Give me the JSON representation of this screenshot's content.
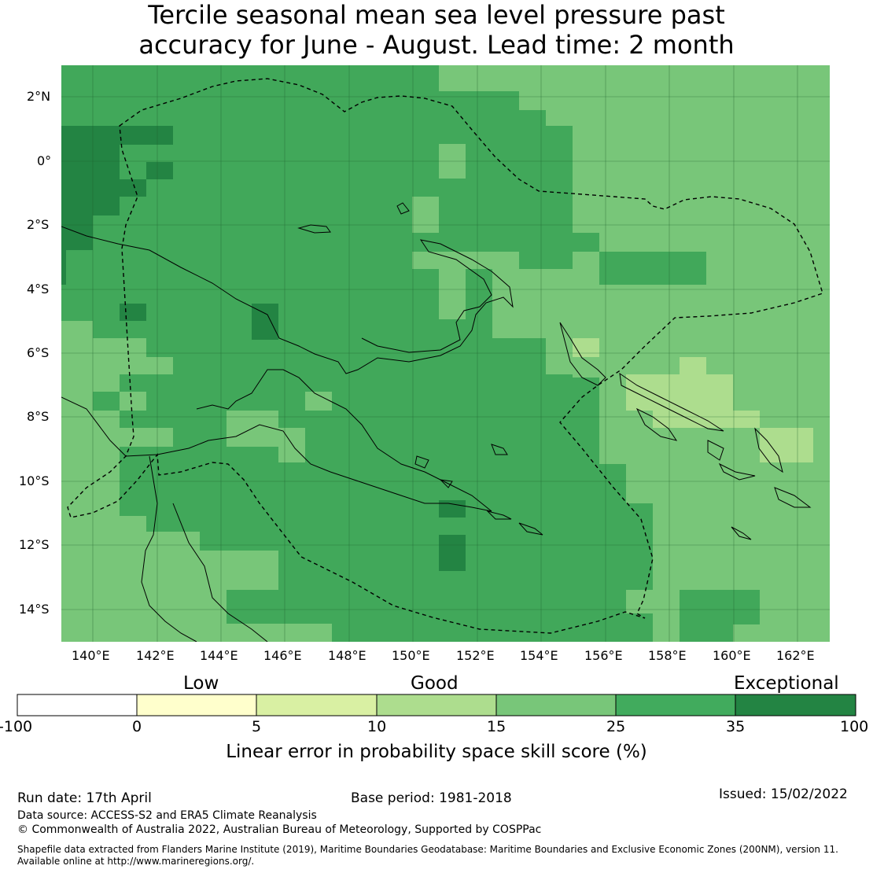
{
  "title": {
    "line1": "Tercile seasonal mean sea level pressure past",
    "line2": "accuracy for June - August. Lead time: 2 month"
  },
  "map": {
    "lat_labels": [
      "2°N",
      "0°",
      "2°S",
      "4°S",
      "6°S",
      "8°S",
      "10°S",
      "12°S",
      "14°S"
    ],
    "lon_labels": [
      "140°E",
      "142°E",
      "144°E",
      "146°E",
      "148°E",
      "150°E",
      "152°E",
      "154°E",
      "156°E",
      "158°E",
      "160°E",
      "162°E"
    ],
    "background_color": "#41a85a"
  },
  "colorbar": {
    "headings": [
      "Low",
      "Good",
      "Exceptional"
    ],
    "ticks": [
      "-100",
      "0",
      "5",
      "10",
      "15",
      "25",
      "35",
      "100"
    ],
    "colors": [
      "#ffffff",
      "#ffffcc",
      "#d9f0a3",
      "#addd8e",
      "#78c679",
      "#41ab5d",
      "#238443"
    ],
    "label": "Linear error in probability space skill score (%)"
  },
  "footer": {
    "run_date": "Run date: 17th April",
    "base_period": "Base period: 1981-2018",
    "issued": "Issued: 15/02/2022",
    "data_source": "Data source: ACCESS-S2 and ERA5 Climate Reanalysis",
    "copyright": "© Commonwealth of Australia 2022, Australian Bureau of Meteorology, Supported by COSPPac",
    "shapefile_line1": "Shapefile data extracted from Flanders Marine Institute (2019), Maritime Boundaries Geodatabase: Maritime Boundaries and Exclusive Economic Zones (200NM), version 11.",
    "shapefile_line2": "Available online at http://www.marineregions.org/."
  }
}
